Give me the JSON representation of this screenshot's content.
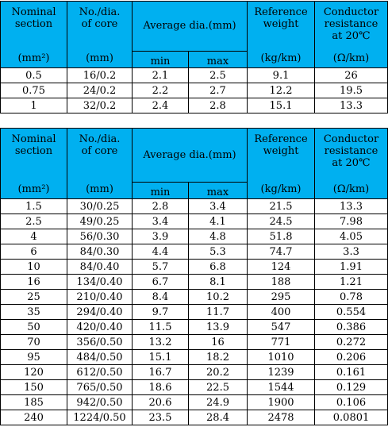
{
  "headers": {
    "nominal_section": "Nominal\nsection",
    "nominal_section_line1": "Nominal",
    "nominal_section_line2": "section",
    "nominal_unit": "(mm²)",
    "core_line1": "No./dia.",
    "core_line2": "of core",
    "core_unit": "(mm)",
    "avg_dia": "Average dia.(mm)",
    "min": "min",
    "max": "max",
    "ref_line1": "Reference",
    "ref_line2": "weight",
    "ref_unit": "(kg/km)",
    "res_line1": "Conductor",
    "res_line2": "resistance",
    "res_line3": "at 20℃",
    "res_unit": "(Ω/km)"
  },
  "table1": {
    "rows": [
      [
        "0.5",
        "16/0.2",
        "2.1",
        "2.5",
        "9.1",
        "26"
      ],
      [
        "0.75",
        "24/0.2",
        "2.2",
        "2.7",
        "12.2",
        "19.5"
      ],
      [
        "1",
        "32/0.2",
        "2.4",
        "2.8",
        "15.1",
        "13.3"
      ]
    ]
  },
  "table2": {
    "rows": [
      [
        "1.5",
        "30/0.25",
        "2.8",
        "3.4",
        "21.5",
        "13.3"
      ],
      [
        "2.5",
        "49/0.25",
        "3.4",
        "4.1",
        "24.5",
        "7.98"
      ],
      [
        "4",
        "56/0.30",
        "3.9",
        "4.8",
        "51.8",
        "4.05"
      ],
      [
        "6",
        "84/0.30",
        "4.4",
        "5.3",
        "74.7",
        "3.3"
      ],
      [
        "10",
        "84/0.40",
        "5.7",
        "6.8",
        "124",
        "1.91"
      ],
      [
        "16",
        "134/0.40",
        "6.7",
        "8.1",
        "188",
        "1.21"
      ],
      [
        "25",
        "210/0.40",
        "8.4",
        "10.2",
        "295",
        "0.78"
      ],
      [
        "35",
        "294/0.40",
        "9.7",
        "11.7",
        "400",
        "0.554"
      ],
      [
        "50",
        "420/0.40",
        "11.5",
        "13.9",
        "547",
        "0.386"
      ],
      [
        "70",
        "356/0.50",
        "13.2",
        "16",
        "771",
        "0.272"
      ],
      [
        "95",
        "484/0.50",
        "15.1",
        "18.2",
        "1010",
        "0.206"
      ],
      [
        "120",
        "612/0.50",
        "16.7",
        "20.2",
        "1239",
        "0.161"
      ],
      [
        "150",
        "765/0.50",
        "18.6",
        "22.5",
        "1544",
        "0.129"
      ],
      [
        "185",
        "942/0.50",
        "20.6",
        "24.9",
        "1900",
        "0.106"
      ],
      [
        "240",
        "1224/0.50",
        "23.5",
        "28.4",
        "2478",
        "0.0801"
      ]
    ]
  },
  "colors": {
    "header_bg": "#00b0f0",
    "border": "#000000",
    "body_bg": "#ffffff"
  }
}
